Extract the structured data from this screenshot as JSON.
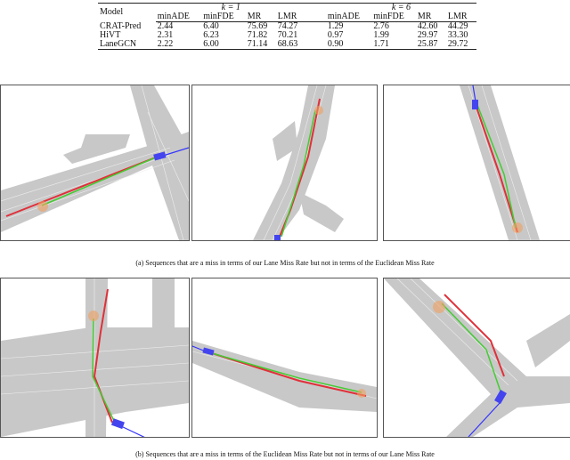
{
  "table": {
    "model_header": "Model",
    "group_headers": [
      "k = 1",
      "k = 6"
    ],
    "columns": [
      "minADE",
      "minFDE",
      "MR",
      "LMR",
      "minADE",
      "minFDE",
      "MR",
      "LMR"
    ],
    "rows": [
      {
        "model": "CRAT-Pred",
        "values": [
          "2.44",
          "6.40",
          "75.69",
          "74.27",
          "1.29",
          "2.76",
          "42.60",
          "44.29"
        ]
      },
      {
        "model": "HiVT",
        "values": [
          "2.31",
          "6.23",
          "71.82",
          "70.21",
          "0.97",
          "1.99",
          "29.97",
          "33.30"
        ]
      },
      {
        "model": "LaneGCN",
        "values": [
          "2.22",
          "6.00",
          "71.14",
          "68.63",
          "0.90",
          "1.71",
          "25.87",
          "29.72"
        ]
      }
    ]
  },
  "captions": {
    "a": "(a) Sequences that are a miss in terms of our Lane Miss Rate but not in terms of the Euclidean Miss Rate",
    "b": "(b) Sequences that are a miss in terms of the Euclidean Miss Rate but not in terms of our Lane Miss Rate"
  },
  "colors": {
    "road": "#c8c8c8",
    "history": "#3333ff",
    "agent": "#4444ee",
    "ground_truth": "#e0303a",
    "prediction": "#44cc33",
    "endpoint": "#f0a060",
    "marker": "#cc22cc"
  }
}
